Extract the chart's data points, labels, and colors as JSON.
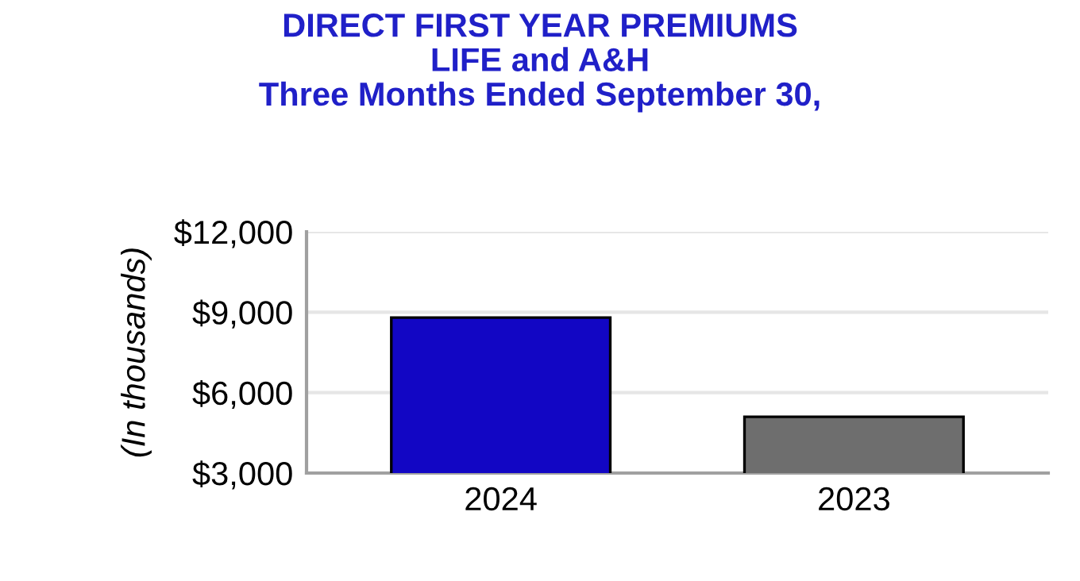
{
  "chart_data": {
    "type": "bar",
    "title": "DIRECT FIRST YEAR PREMIUMS\nLIFE and A&H\nThree Months Ended September 30,",
    "ylabel": "(In thousands)",
    "categories": [
      "2024",
      "2023"
    ],
    "values": [
      8800,
      5100
    ],
    "colors": [
      "#1206c4",
      "#6e6e6e"
    ],
    "ylim": [
      3000,
      12000
    ],
    "yticks": [
      {
        "value": 3000,
        "label": "$3,000"
      },
      {
        "value": 6000,
        "label": "$6,000"
      },
      {
        "value": 9000,
        "label": "$9,000"
      },
      {
        "value": 12000,
        "label": "$12,000"
      }
    ],
    "grid": "y"
  }
}
